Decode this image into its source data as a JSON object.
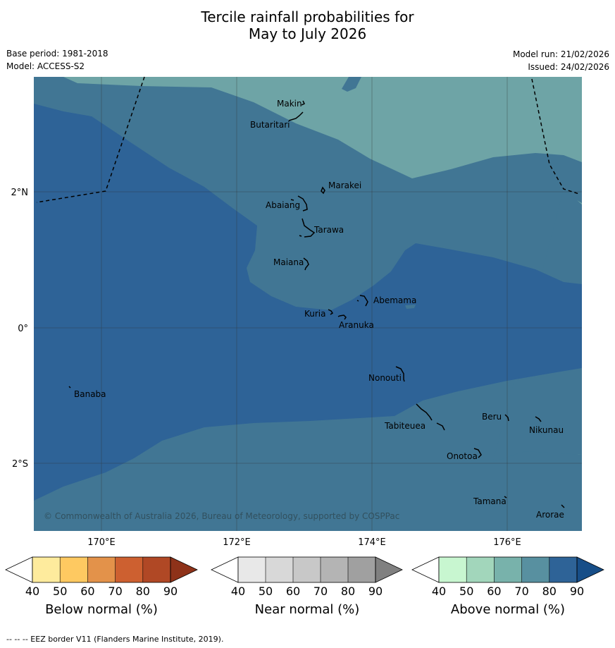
{
  "title": {
    "line1": "Tercile rainfall probabilities for",
    "line2": "May to July 2026"
  },
  "meta": {
    "base_period": "Base period: 1981-2018",
    "model": "Model: ACCESS-S2",
    "model_run": "Model run: 21/02/2026",
    "issued": "Issued: 24/02/2026"
  },
  "map": {
    "lat_labels": [
      "2°N",
      "0°",
      "2°S"
    ],
    "lon_labels": [
      "170°E",
      "172°E",
      "174°E",
      "176°E"
    ],
    "copyright": "© Commonwealth of Australia 2026, Bureau of Meteorology, supported by COSPPac",
    "colors": {
      "land_70_80": "#417694",
      "high_80_90": "#2e6397",
      "light_60_70": "#6ea4a6",
      "coast": "#000000",
      "eez": "#000000"
    },
    "islands": [
      {
        "id": "makin",
        "label": "Makin"
      },
      {
        "id": "butaritari",
        "label": "Butaritari"
      },
      {
        "id": "marakei",
        "label": "Marakei"
      },
      {
        "id": "abaiang",
        "label": "Abaiang"
      },
      {
        "id": "tarawa",
        "label": "Tarawa"
      },
      {
        "id": "maiana",
        "label": "Maiana"
      },
      {
        "id": "abemama",
        "label": "Abemama"
      },
      {
        "id": "kuria",
        "label": "Kuria"
      },
      {
        "id": "aranuka",
        "label": "Aranuka"
      },
      {
        "id": "nonouti",
        "label": "Nonouti"
      },
      {
        "id": "banaba",
        "label": "Banaba"
      },
      {
        "id": "beru",
        "label": "Beru"
      },
      {
        "id": "tabiteuea",
        "label": "Tabiteuea"
      },
      {
        "id": "nikunau",
        "label": "Nikunau"
      },
      {
        "id": "onotoa",
        "label": "Onotoa"
      },
      {
        "id": "tamana",
        "label": "Tamana"
      },
      {
        "id": "arorae",
        "label": "Arorae"
      }
    ]
  },
  "colorbars": [
    {
      "id": "below",
      "label": "Below normal (%)",
      "ticks": [
        "40",
        "50",
        "60",
        "70",
        "80",
        "90"
      ],
      "colors": [
        "#ffffff",
        "#feeb9d",
        "#fec961",
        "#e3924a",
        "#cd6030",
        "#b04825",
        "#8e3219"
      ]
    },
    {
      "id": "near",
      "label": "Near normal (%)",
      "ticks": [
        "40",
        "50",
        "60",
        "70",
        "80",
        "90"
      ],
      "colors": [
        "#ffffff",
        "#e8e8e8",
        "#d8d8d8",
        "#c8c8c8",
        "#b4b4b4",
        "#a0a0a0",
        "#808080"
      ]
    },
    {
      "id": "above",
      "label": "Above normal (%)",
      "ticks": [
        "40",
        "50",
        "60",
        "70",
        "80",
        "90"
      ],
      "colors": [
        "#ffffff",
        "#c8f6d0",
        "#a2d6bb",
        "#78b2ab",
        "#5890a0",
        "#2e6397",
        "#174e88"
      ]
    }
  ],
  "footer": "--  --  -- EEZ border V11 (Flanders Marine Institute, 2019)."
}
